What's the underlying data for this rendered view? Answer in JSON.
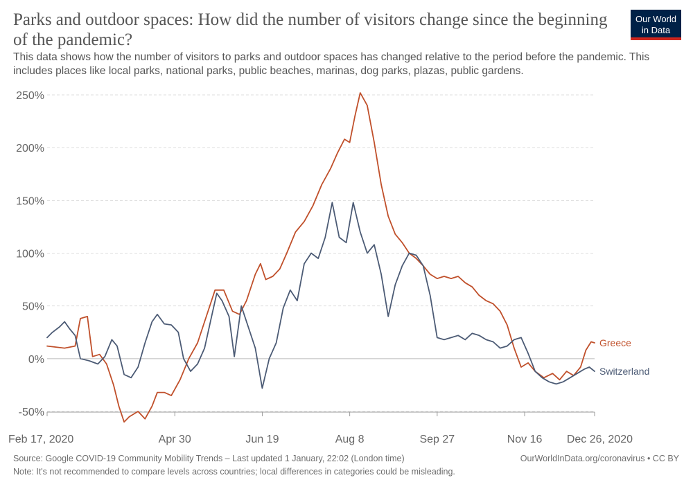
{
  "header": {
    "title": "Parks and outdoor spaces: How did the number of visitors change since the beginning of the pandemic?",
    "subtitle": "This data shows how the number of visitors to parks and outdoor spaces has changed relative to the period before the pandemic. This includes places like local parks, national parks, public beaches, marinas, dog parks, plazas, public gardens.",
    "logo_line1": "Our World",
    "logo_line2": "in Data"
  },
  "footer": {
    "source": "Source: Google COVID-19 Community Mobility Trends – Last updated 1 January, 22:02 (London time)",
    "url": "OurWorldInData.org/coronavirus • CC BY",
    "note": "Note: It's not recommended to compare levels across countries; local differences in categories could be misleading."
  },
  "colors": {
    "greece": "#c0502b",
    "switzerland": "#4c5b75",
    "grid": "#dddddd",
    "zero_line": "#bbbbbb",
    "logo_bg": "#002147",
    "logo_bar": "#ce261e"
  },
  "chart_data": {
    "type": "line",
    "x_start": "2020-02-17",
    "x_end": "2020-12-26",
    "ylim": [
      -50,
      250
    ],
    "y_ticks": [
      -50,
      0,
      50,
      100,
      150,
      200,
      250
    ],
    "y_tick_labels": [
      "-50%",
      "0%",
      "50%",
      "100%",
      "150%",
      "200%",
      "250%"
    ],
    "x_ticks": [
      "2020-02-17",
      "2020-04-30",
      "2020-06-19",
      "2020-08-08",
      "2020-09-27",
      "2020-11-16",
      "2020-12-26"
    ],
    "x_tick_labels": [
      "Feb 17, 2020",
      "Apr 30",
      "Jun 19",
      "Aug 8",
      "Sep 27",
      "Nov 16",
      "Dec 26, 2020"
    ],
    "grid": "horizontal-dashed",
    "legend": "inline-right",
    "series": [
      {
        "name": "Greece",
        "color": "#c0502b",
        "points": [
          [
            "2020-02-17",
            12
          ],
          [
            "2020-02-22",
            11
          ],
          [
            "2020-02-27",
            10
          ],
          [
            "2020-03-04",
            12
          ],
          [
            "2020-03-07",
            38
          ],
          [
            "2020-03-11",
            40
          ],
          [
            "2020-03-14",
            2
          ],
          [
            "2020-03-18",
            4
          ],
          [
            "2020-03-22",
            -5
          ],
          [
            "2020-03-26",
            -25
          ],
          [
            "2020-03-29",
            -45
          ],
          [
            "2020-04-01",
            -60
          ],
          [
            "2020-04-04",
            -55
          ],
          [
            "2020-04-09",
            -50
          ],
          [
            "2020-04-13",
            -57
          ],
          [
            "2020-04-17",
            -45
          ],
          [
            "2020-04-20",
            -32
          ],
          [
            "2020-04-24",
            -32
          ],
          [
            "2020-04-28",
            -35
          ],
          [
            "2020-05-03",
            -20
          ],
          [
            "2020-05-08",
            0
          ],
          [
            "2020-05-13",
            15
          ],
          [
            "2020-05-18",
            40
          ],
          [
            "2020-05-23",
            65
          ],
          [
            "2020-05-28",
            65
          ],
          [
            "2020-06-02",
            45
          ],
          [
            "2020-06-06",
            42
          ],
          [
            "2020-06-10",
            55
          ],
          [
            "2020-06-15",
            80
          ],
          [
            "2020-06-18",
            90
          ],
          [
            "2020-06-21",
            75
          ],
          [
            "2020-06-25",
            78
          ],
          [
            "2020-06-29",
            85
          ],
          [
            "2020-07-03",
            100
          ],
          [
            "2020-07-08",
            120
          ],
          [
            "2020-07-13",
            130
          ],
          [
            "2020-07-18",
            145
          ],
          [
            "2020-07-23",
            165
          ],
          [
            "2020-07-28",
            180
          ],
          [
            "2020-08-01",
            195
          ],
          [
            "2020-08-05",
            208
          ],
          [
            "2020-08-08",
            205
          ],
          [
            "2020-08-11",
            230
          ],
          [
            "2020-08-14",
            252
          ],
          [
            "2020-08-18",
            240
          ],
          [
            "2020-08-22",
            205
          ],
          [
            "2020-08-26",
            165
          ],
          [
            "2020-08-30",
            135
          ],
          [
            "2020-09-03",
            118
          ],
          [
            "2020-09-07",
            110
          ],
          [
            "2020-09-11",
            100
          ],
          [
            "2020-09-15",
            95
          ],
          [
            "2020-09-19",
            88
          ],
          [
            "2020-09-23",
            80
          ],
          [
            "2020-09-27",
            76
          ],
          [
            "2020-10-01",
            78
          ],
          [
            "2020-10-05",
            76
          ],
          [
            "2020-10-09",
            78
          ],
          [
            "2020-10-13",
            72
          ],
          [
            "2020-10-17",
            68
          ],
          [
            "2020-10-21",
            60
          ],
          [
            "2020-10-25",
            55
          ],
          [
            "2020-10-29",
            52
          ],
          [
            "2020-11-02",
            45
          ],
          [
            "2020-11-06",
            32
          ],
          [
            "2020-11-10",
            10
          ],
          [
            "2020-11-14",
            -8
          ],
          [
            "2020-11-18",
            -4
          ],
          [
            "2020-11-22",
            -12
          ],
          [
            "2020-11-27",
            -18
          ],
          [
            "2020-12-02",
            -14
          ],
          [
            "2020-12-06",
            -20
          ],
          [
            "2020-12-10",
            -12
          ],
          [
            "2020-12-14",
            -16
          ],
          [
            "2020-12-18",
            -8
          ],
          [
            "2020-12-21",
            8
          ],
          [
            "2020-12-24",
            16
          ],
          [
            "2020-12-26",
            15
          ]
        ]
      },
      {
        "name": "Switzerland",
        "color": "#4c5b75",
        "points": [
          [
            "2020-02-17",
            20
          ],
          [
            "2020-02-20",
            25
          ],
          [
            "2020-02-24",
            30
          ],
          [
            "2020-02-27",
            35
          ],
          [
            "2020-03-01",
            28
          ],
          [
            "2020-03-04",
            22
          ],
          [
            "2020-03-07",
            0
          ],
          [
            "2020-03-12",
            -2
          ],
          [
            "2020-03-17",
            -5
          ],
          [
            "2020-03-21",
            2
          ],
          [
            "2020-03-25",
            18
          ],
          [
            "2020-03-28",
            12
          ],
          [
            "2020-04-01",
            -15
          ],
          [
            "2020-04-05",
            -18
          ],
          [
            "2020-04-09",
            -8
          ],
          [
            "2020-04-13",
            15
          ],
          [
            "2020-04-17",
            35
          ],
          [
            "2020-04-20",
            42
          ],
          [
            "2020-04-24",
            33
          ],
          [
            "2020-04-28",
            32
          ],
          [
            "2020-05-02",
            25
          ],
          [
            "2020-05-05",
            0
          ],
          [
            "2020-05-09",
            -12
          ],
          [
            "2020-05-13",
            -5
          ],
          [
            "2020-05-17",
            10
          ],
          [
            "2020-05-21",
            40
          ],
          [
            "2020-05-24",
            62
          ],
          [
            "2020-05-27",
            55
          ],
          [
            "2020-05-31",
            40
          ],
          [
            "2020-06-03",
            2
          ],
          [
            "2020-06-07",
            50
          ],
          [
            "2020-06-11",
            30
          ],
          [
            "2020-06-15",
            10
          ],
          [
            "2020-06-19",
            -28
          ],
          [
            "2020-06-23",
            0
          ],
          [
            "2020-06-27",
            15
          ],
          [
            "2020-07-01",
            48
          ],
          [
            "2020-07-05",
            65
          ],
          [
            "2020-07-09",
            55
          ],
          [
            "2020-07-13",
            90
          ],
          [
            "2020-07-17",
            100
          ],
          [
            "2020-07-21",
            95
          ],
          [
            "2020-07-25",
            115
          ],
          [
            "2020-07-29",
            148
          ],
          [
            "2020-08-02",
            115
          ],
          [
            "2020-08-06",
            110
          ],
          [
            "2020-08-10",
            148
          ],
          [
            "2020-08-14",
            120
          ],
          [
            "2020-08-18",
            100
          ],
          [
            "2020-08-22",
            108
          ],
          [
            "2020-08-26",
            80
          ],
          [
            "2020-08-30",
            40
          ],
          [
            "2020-09-03",
            70
          ],
          [
            "2020-09-07",
            88
          ],
          [
            "2020-09-11",
            100
          ],
          [
            "2020-09-15",
            98
          ],
          [
            "2020-09-19",
            88
          ],
          [
            "2020-09-23",
            60
          ],
          [
            "2020-09-27",
            20
          ],
          [
            "2020-10-01",
            18
          ],
          [
            "2020-10-05",
            20
          ],
          [
            "2020-10-09",
            22
          ],
          [
            "2020-10-13",
            18
          ],
          [
            "2020-10-17",
            24
          ],
          [
            "2020-10-21",
            22
          ],
          [
            "2020-10-25",
            18
          ],
          [
            "2020-10-29",
            16
          ],
          [
            "2020-11-02",
            10
          ],
          [
            "2020-11-06",
            12
          ],
          [
            "2020-11-10",
            18
          ],
          [
            "2020-11-14",
            20
          ],
          [
            "2020-11-18",
            5
          ],
          [
            "2020-11-22",
            -12
          ],
          [
            "2020-11-26",
            -18
          ],
          [
            "2020-11-30",
            -22
          ],
          [
            "2020-12-04",
            -24
          ],
          [
            "2020-12-08",
            -22
          ],
          [
            "2020-12-12",
            -18
          ],
          [
            "2020-12-16",
            -14
          ],
          [
            "2020-12-20",
            -10
          ],
          [
            "2020-12-23",
            -8
          ],
          [
            "2020-12-26",
            -12
          ]
        ]
      }
    ]
  }
}
